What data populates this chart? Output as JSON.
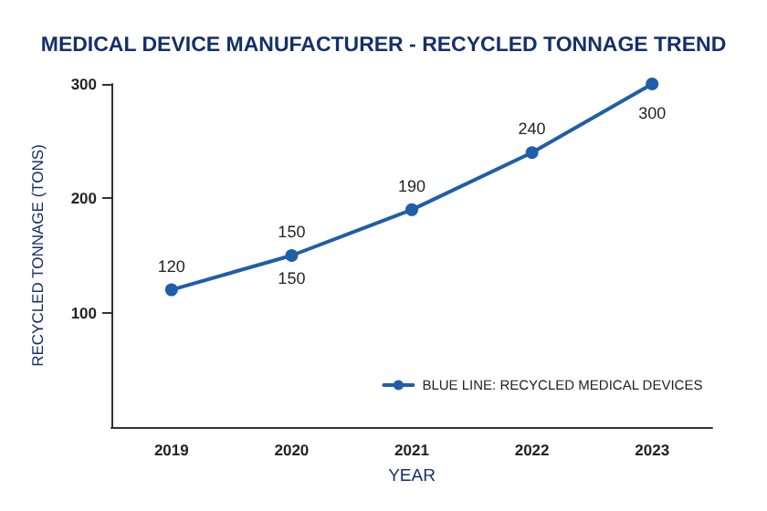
{
  "chart_data": {
    "type": "line",
    "title": "MEDICAL DEVICE MANUFACTURER - RECYCLED TONNAGE TREND",
    "xlabel": "YEAR",
    "ylabel": "RECYCLED TONNAGE (TONS)",
    "categories": [
      "2019",
      "2020",
      "2021",
      "2022",
      "2023"
    ],
    "series": [
      {
        "name": "BLUE LINE: RECYCLED MEDICAL DEVICES",
        "color": "#1f5ea8",
        "values": [
          120,
          150,
          190,
          240,
          300
        ]
      }
    ],
    "annotations": [
      {
        "text": "150",
        "x": "2020",
        "y": 150
      }
    ],
    "ylim": [
      0,
      300
    ],
    "yticks": [
      100,
      200,
      300
    ],
    "grid": false,
    "legend": "bottom right",
    "marker": "circle",
    "line_style": "solid",
    "data_labels": true
  }
}
